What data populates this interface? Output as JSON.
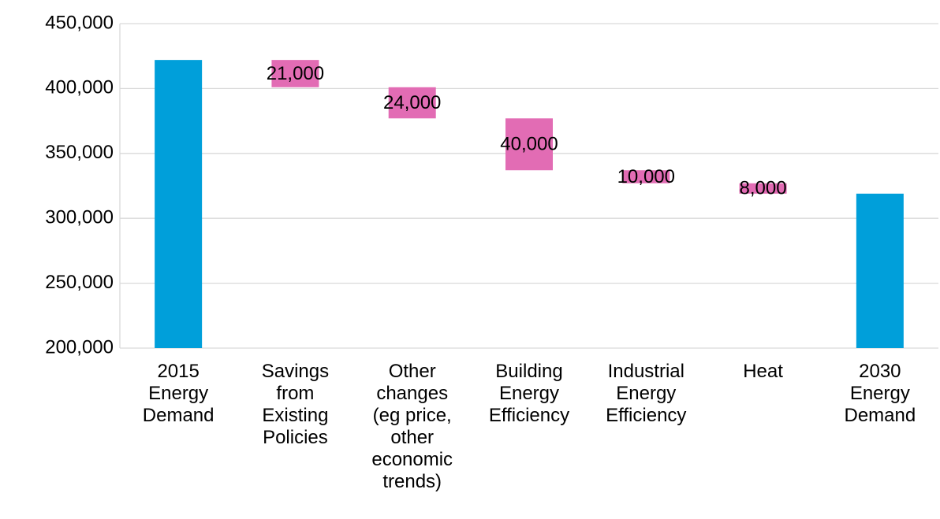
{
  "chart_data": {
    "type": "waterfall",
    "categories": [
      "2015 Energy Demand",
      "Savings from Existing Policies",
      "Other changes (eg price, other economic trends)",
      "Building Energy Efficiency",
      "Industrial Energy Efficiency",
      "Heat",
      "2030 Energy Demand"
    ],
    "values": [
      422000,
      21000,
      24000,
      40000,
      10000,
      8000,
      319000
    ],
    "value_labels": [
      null,
      "21,000",
      "24,000",
      "40,000",
      "10,000",
      "8,000",
      null
    ],
    "measures": [
      "absolute",
      "decrease",
      "decrease",
      "decrease",
      "decrease",
      "decrease",
      "absolute"
    ],
    "total_color": "#009fda",
    "decrease_color": "#e26cb4",
    "ylim": [
      200000,
      450000
    ],
    "yticks": [
      {
        "value": 200000,
        "label": "200,000"
      },
      {
        "value": 250000,
        "label": "250,000"
      },
      {
        "value": 300000,
        "label": "300,000"
      },
      {
        "value": 350000,
        "label": "350,000"
      },
      {
        "value": 400000,
        "label": "400,000"
      },
      {
        "value": 450000,
        "label": "450,000"
      }
    ],
    "grid": true
  }
}
